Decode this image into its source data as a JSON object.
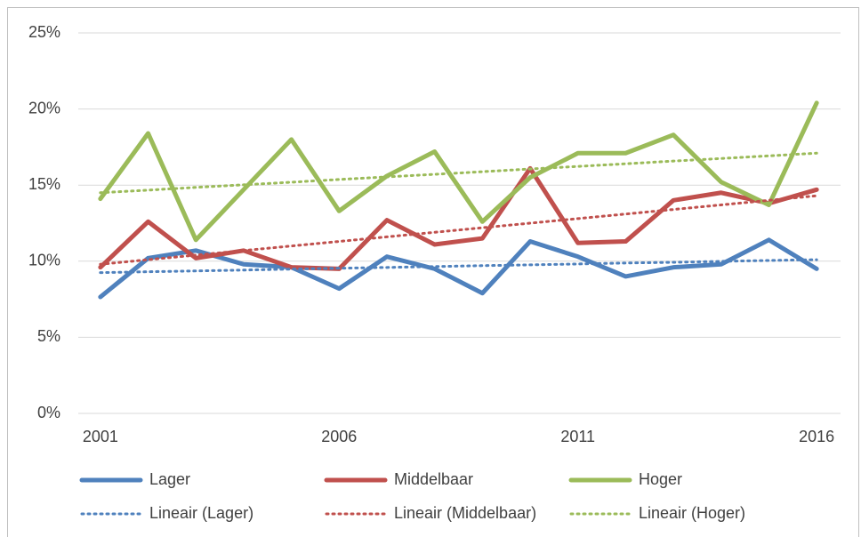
{
  "chart_data": {
    "type": "line",
    "x": [
      2001,
      2002,
      2003,
      2004,
      2005,
      2006,
      2007,
      2008,
      2009,
      2010,
      2011,
      2012,
      2013,
      2014,
      2015,
      2016
    ],
    "xlim": [
      2000.5,
      2016.5
    ],
    "xticks": [
      2001,
      2006,
      2011,
      2016
    ],
    "ylim": [
      0,
      25
    ],
    "yticks": [
      {
        "value": 0,
        "label": "0%"
      },
      {
        "value": 5,
        "label": "5%"
      },
      {
        "value": 10,
        "label": "10%"
      },
      {
        "value": 15,
        "label": "15%"
      },
      {
        "value": 20,
        "label": "20%"
      },
      {
        "value": 25,
        "label": "25%"
      }
    ],
    "grid": true,
    "legend": "bottom",
    "series": [
      {
        "name": "Lager",
        "color": "#4f81bd",
        "style": "solid",
        "values": [
          7.65,
          10.2,
          10.7,
          9.8,
          9.6,
          8.2,
          10.3,
          9.5,
          7.9,
          11.3,
          10.3,
          9.0,
          9.6,
          9.8,
          11.4,
          9.5
        ]
      },
      {
        "name": "Middelbaar",
        "color": "#c0504d",
        "style": "solid",
        "values": [
          9.6,
          12.6,
          10.2,
          10.7,
          9.6,
          9.5,
          12.7,
          11.1,
          11.5,
          16.1,
          11.2,
          11.3,
          14.0,
          14.5,
          13.8,
          14.7
        ]
      },
      {
        "name": "Hoger",
        "color": "#9bbb59",
        "style": "solid",
        "values": [
          14.1,
          18.4,
          11.4,
          14.7,
          18.0,
          13.3,
          15.6,
          17.2,
          12.6,
          15.5,
          17.1,
          17.1,
          18.3,
          15.2,
          13.7,
          20.4
        ]
      },
      {
        "name": "Lineair (Lager)",
        "color": "#4f81bd",
        "style": "dotted",
        "values": [
          9.25,
          9.31,
          9.36,
          9.42,
          9.48,
          9.54,
          9.59,
          9.65,
          9.71,
          9.76,
          9.82,
          9.88,
          9.93,
          9.99,
          10.05,
          10.1
        ]
      },
      {
        "name": "Lineair (Middelbaar)",
        "color": "#c0504d",
        "style": "dotted",
        "values": [
          9.8,
          10.1,
          10.4,
          10.7,
          11.0,
          11.3,
          11.6,
          11.9,
          12.2,
          12.5,
          12.8,
          13.1,
          13.4,
          13.7,
          14.0,
          14.3
        ]
      },
      {
        "name": "Lineair (Hoger)",
        "color": "#9bbb59",
        "style": "dotted",
        "values": [
          14.5,
          14.67,
          14.85,
          15.02,
          15.19,
          15.37,
          15.54,
          15.71,
          15.88,
          16.06,
          16.23,
          16.4,
          16.58,
          16.75,
          16.92,
          17.1
        ]
      }
    ]
  }
}
